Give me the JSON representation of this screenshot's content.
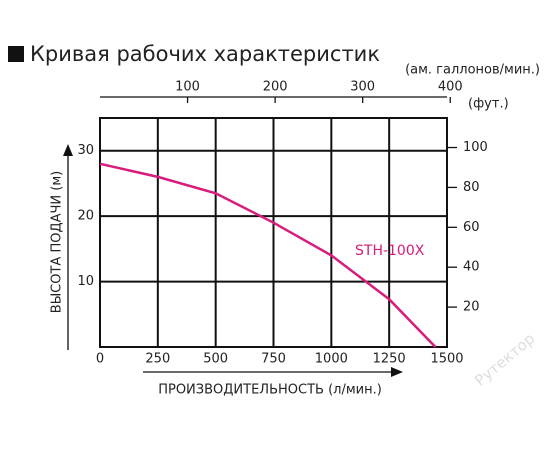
{
  "chart_data": {
    "type": "line",
    "title": "Кривая рабочих характеристик",
    "x_label": "ПРОИЗВОДИТЕЛЬНОСТЬ (л/мин.)",
    "y_label": "ВЫСОТА ПОДАЧИ (м)",
    "x2_label": "(ам. галлонов/мин.)",
    "y2_label": "(фут.)",
    "watermark": "Рутектор",
    "x": [
      0,
      250,
      500,
      750,
      1000,
      1250,
      1450
    ],
    "series": [
      {
        "name": "STH-100X",
        "color": "#d81b7c",
        "values": [
          28,
          26,
          23.5,
          19,
          14,
          7.3,
          0
        ]
      }
    ],
    "xlim": [
      0,
      1500
    ],
    "xticks": [
      0,
      250,
      500,
      750,
      1000,
      1250,
      1500
    ],
    "ylim": [
      0,
      35
    ],
    "yticks": [
      10,
      20,
      30
    ],
    "x2lim": [
      0,
      396.3
    ],
    "x2ticks": [
      100,
      200,
      300,
      400
    ],
    "y2lim": [
      0,
      114.8
    ],
    "y2ticks": [
      20,
      40,
      60,
      80,
      100
    ],
    "grid": true
  }
}
